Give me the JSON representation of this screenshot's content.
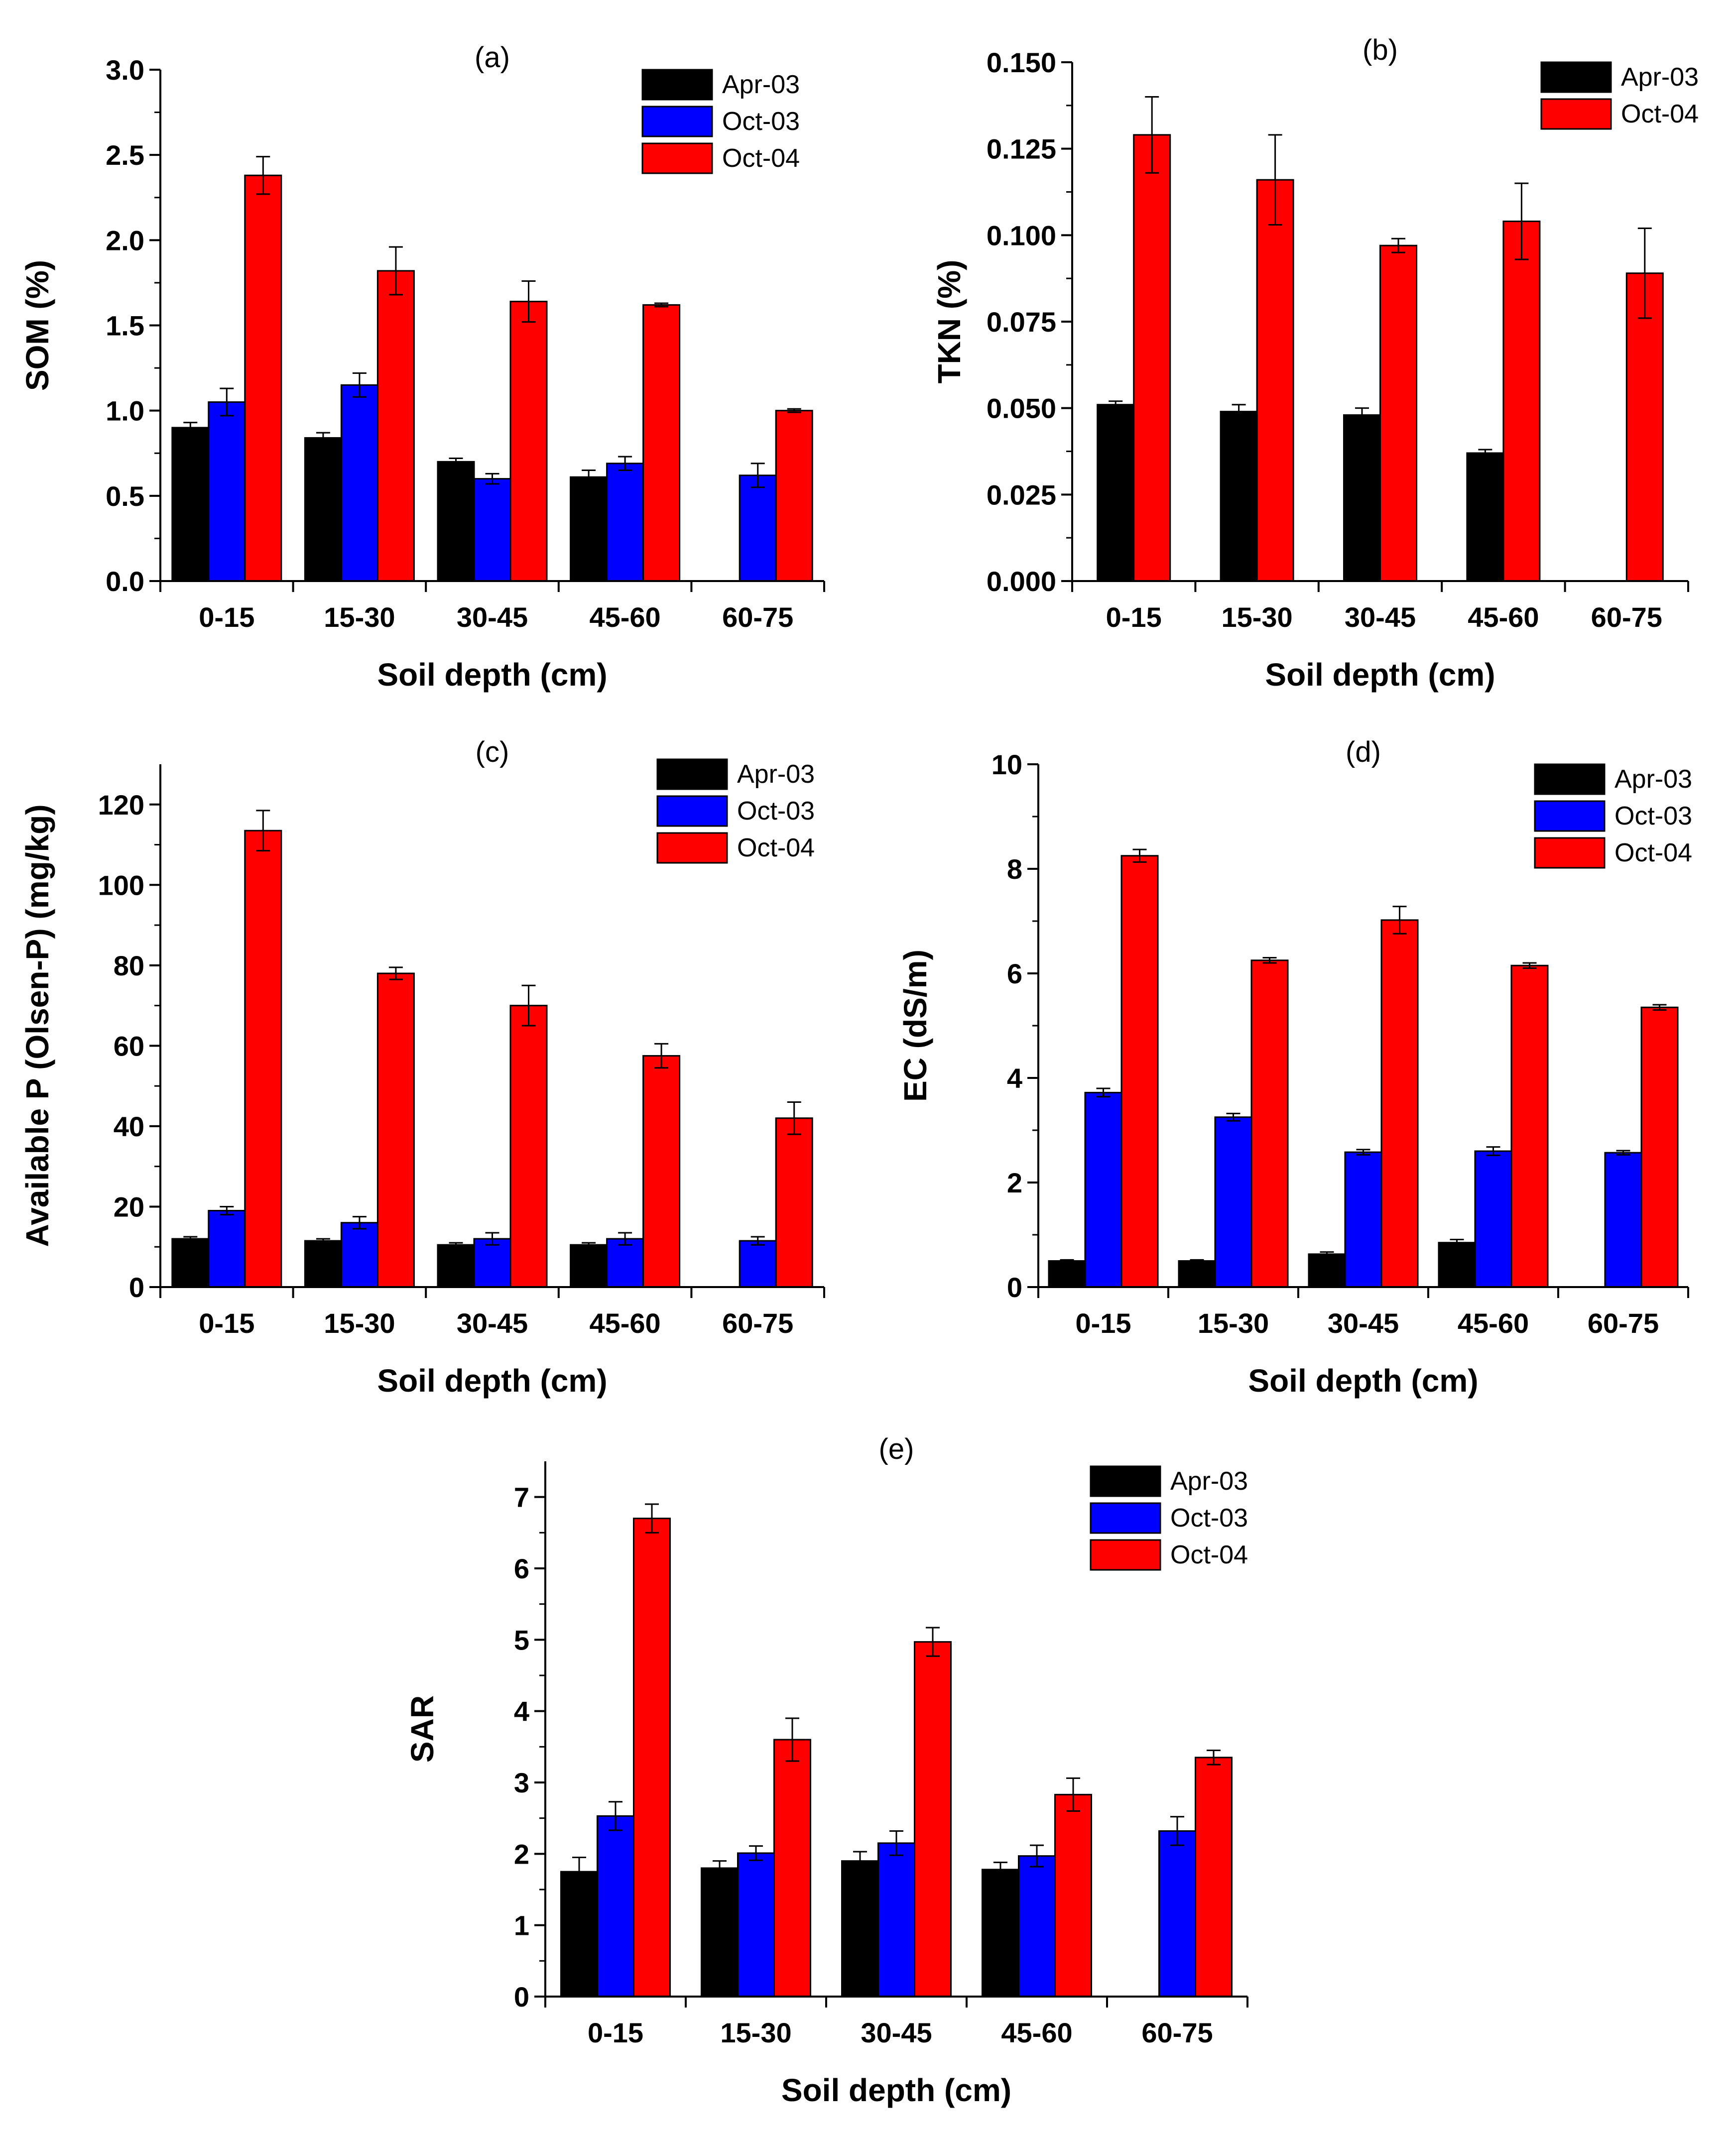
{
  "colors": {
    "Apr-03": "#000000",
    "Oct-03": "#0000ff",
    "Oct-04": "#ff0000"
  },
  "chart_data": [
    {
      "type": "bar",
      "panel": "(a)",
      "xlabel": "Soil depth (cm)",
      "ylabel": "SOM (%)",
      "categories": [
        "0-15",
        "15-30",
        "30-45",
        "45-60",
        "60-75"
      ],
      "ylim": [
        0,
        3.0
      ],
      "yticks": [
        "0.0",
        "0.5",
        "1.0",
        "1.5",
        "2.0",
        "2.5",
        "3.0"
      ],
      "legend": "top-right",
      "series": [
        {
          "name": "Apr-03",
          "values": [
            0.9,
            0.84,
            0.7,
            0.61,
            null
          ],
          "errors": [
            0.03,
            0.03,
            0.02,
            0.04,
            null
          ]
        },
        {
          "name": "Oct-03",
          "values": [
            1.05,
            1.15,
            0.6,
            0.69,
            0.62
          ],
          "errors": [
            0.08,
            0.07,
            0.03,
            0.04,
            0.07
          ]
        },
        {
          "name": "Oct-04",
          "values": [
            2.38,
            1.82,
            1.64,
            1.62,
            1.0
          ],
          "errors": [
            0.11,
            0.14,
            0.12,
            0.01,
            0.01
          ]
        }
      ]
    },
    {
      "type": "bar",
      "panel": "(b)",
      "xlabel": "Soil depth (cm)",
      "ylabel": "TKN (%)",
      "categories": [
        "0-15",
        "15-30",
        "30-45",
        "45-60",
        "60-75"
      ],
      "ylim": [
        0,
        0.15
      ],
      "yticks": [
        "0.000",
        "0.025",
        "0.050",
        "0.075",
        "0.100",
        "0.125",
        "0.150"
      ],
      "legend": "top-right",
      "series": [
        {
          "name": "Apr-03",
          "values": [
            0.051,
            0.049,
            0.048,
            0.037,
            null
          ],
          "errors": [
            0.001,
            0.002,
            0.002,
            0.001,
            null
          ]
        },
        {
          "name": "Oct-04",
          "values": [
            0.129,
            0.116,
            0.097,
            0.104,
            0.089
          ],
          "errors": [
            0.011,
            0.013,
            0.002,
            0.011,
            0.013
          ]
        }
      ]
    },
    {
      "type": "bar",
      "panel": "(c)",
      "xlabel": "Soil depth (cm)",
      "ylabel": "Available P (Olsen-P) (mg/kg)",
      "categories": [
        "0-15",
        "15-30",
        "30-45",
        "45-60",
        "60-75"
      ],
      "ylim": [
        0,
        130
      ],
      "yticks": [
        "0",
        "20",
        "40",
        "60",
        "80",
        "100",
        "120"
      ],
      "legend": "top-right",
      "series": [
        {
          "name": "Apr-03",
          "values": [
            12,
            11.5,
            10.5,
            10.5,
            null
          ],
          "errors": [
            0.5,
            0.5,
            0.5,
            0.5,
            null
          ]
        },
        {
          "name": "Oct-03",
          "values": [
            19,
            16,
            12,
            12,
            11.5
          ],
          "errors": [
            1,
            1.5,
            1.5,
            1.5,
            1
          ]
        },
        {
          "name": "Oct-04",
          "values": [
            113.5,
            78,
            70,
            57.5,
            42
          ],
          "errors": [
            5,
            1.5,
            5,
            3,
            4
          ]
        }
      ]
    },
    {
      "type": "bar",
      "panel": "(d)",
      "xlabel": "Soil depth (cm)",
      "ylabel": "EC (dS/m)",
      "categories": [
        "0-15",
        "15-30",
        "30-45",
        "45-60",
        "60-75"
      ],
      "ylim": [
        0,
        10
      ],
      "yticks": [
        "0",
        "2",
        "4",
        "6",
        "8",
        "10"
      ],
      "legend": "top-right",
      "series": [
        {
          "name": "Apr-03",
          "values": [
            0.5,
            0.5,
            0.63,
            0.85,
            null
          ],
          "errors": [
            0.02,
            0.02,
            0.04,
            0.06,
            null
          ]
        },
        {
          "name": "Oct-03",
          "values": [
            3.72,
            3.25,
            2.58,
            2.6,
            2.57
          ],
          "errors": [
            0.08,
            0.07,
            0.05,
            0.08,
            0.04
          ]
        },
        {
          "name": "Oct-04",
          "values": [
            8.25,
            6.25,
            7.02,
            6.15,
            5.35
          ],
          "errors": [
            0.12,
            0.05,
            0.26,
            0.05,
            0.05
          ]
        }
      ]
    },
    {
      "type": "bar",
      "panel": "(e)",
      "xlabel": "Soil depth (cm)",
      "ylabel": "SAR",
      "categories": [
        "0-15",
        "15-30",
        "30-45",
        "45-60",
        "60-75"
      ],
      "ylim": [
        0,
        7.5
      ],
      "yticks": [
        "0",
        "1",
        "2",
        "3",
        "4",
        "5",
        "6",
        "7"
      ],
      "legend": "top-right",
      "series": [
        {
          "name": "Apr-03",
          "values": [
            1.75,
            1.8,
            1.9,
            1.78,
            null
          ],
          "errors": [
            0.2,
            0.1,
            0.13,
            0.1,
            null
          ]
        },
        {
          "name": "Oct-03",
          "values": [
            2.53,
            2.01,
            2.15,
            1.97,
            2.32
          ],
          "errors": [
            0.2,
            0.1,
            0.17,
            0.15,
            0.2
          ]
        },
        {
          "name": "Oct-04",
          "values": [
            6.7,
            3.6,
            4.97,
            2.83,
            3.35
          ],
          "errors": [
            0.2,
            0.3,
            0.2,
            0.23,
            0.1
          ]
        }
      ]
    }
  ]
}
